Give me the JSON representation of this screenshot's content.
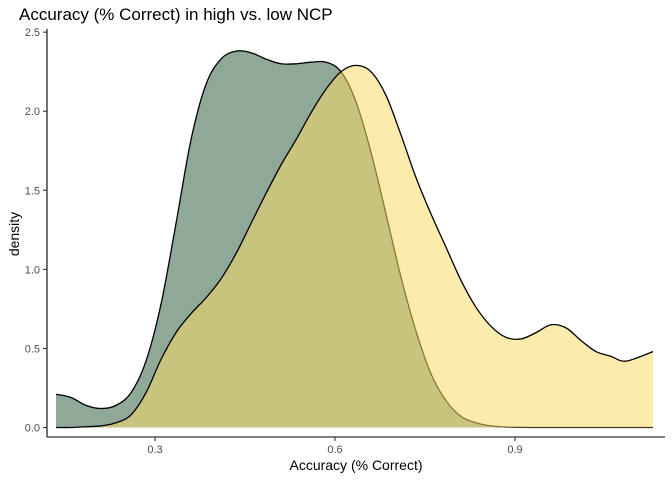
{
  "chart_data": {
    "type": "area",
    "title": "Accuracy (% Correct) in high vs. low NCP",
    "xlabel": "Accuracy (% Correct)",
    "ylabel": "density",
    "xlim": [
      0.12,
      1.15
    ],
    "ylim": [
      -0.06,
      2.52
    ],
    "x_ticks": [
      0.3,
      0.6,
      0.9
    ],
    "x_tick_labels": [
      "0.3",
      "0.6",
      "0.9"
    ],
    "y_ticks": [
      0.0,
      0.5,
      1.0,
      1.5,
      2.0,
      2.5
    ],
    "y_tick_labels": [
      "0.0",
      "0.5",
      "1.0",
      "1.5",
      "2.0",
      "2.5"
    ],
    "grid": false,
    "legend": "none",
    "series": [
      {
        "color": "#8fa897",
        "x": [
          0.135,
          0.16,
          0.185,
          0.21,
          0.235,
          0.26,
          0.285,
          0.31,
          0.335,
          0.36,
          0.385,
          0.41,
          0.435,
          0.46,
          0.485,
          0.51,
          0.535,
          0.56,
          0.585,
          0.61,
          0.635,
          0.66,
          0.685,
          0.71,
          0.735,
          0.76,
          0.785,
          0.81,
          0.835,
          0.86,
          0.885,
          0.91,
          0.935,
          0.96,
          0.985,
          1.01,
          1.035,
          1.06,
          1.085,
          1.13
        ],
        "values": [
          0.21,
          0.19,
          0.14,
          0.12,
          0.14,
          0.22,
          0.42,
          0.78,
          1.29,
          1.82,
          2.17,
          2.33,
          2.38,
          2.37,
          2.33,
          2.3,
          2.3,
          2.31,
          2.31,
          2.25,
          2.06,
          1.74,
          1.35,
          0.95,
          0.61,
          0.34,
          0.17,
          0.07,
          0.03,
          0.01,
          0.003,
          0.001,
          0.0,
          0.0,
          0.0,
          0.0,
          0.0,
          0.0,
          0.0,
          0.0
        ]
      },
      {
        "color": "#f7db6a",
        "opacity": 0.55,
        "x": [
          0.135,
          0.16,
          0.185,
          0.21,
          0.235,
          0.26,
          0.285,
          0.31,
          0.335,
          0.36,
          0.385,
          0.41,
          0.435,
          0.46,
          0.485,
          0.51,
          0.535,
          0.56,
          0.585,
          0.61,
          0.635,
          0.66,
          0.685,
          0.71,
          0.735,
          0.76,
          0.785,
          0.81,
          0.835,
          0.86,
          0.885,
          0.91,
          0.935,
          0.96,
          0.985,
          1.01,
          1.035,
          1.06,
          1.085,
          1.13
        ],
        "values": [
          0.0,
          0.0,
          0.005,
          0.01,
          0.03,
          0.08,
          0.22,
          0.43,
          0.6,
          0.72,
          0.82,
          0.94,
          1.1,
          1.29,
          1.48,
          1.66,
          1.82,
          1.99,
          2.14,
          2.25,
          2.29,
          2.25,
          2.1,
          1.85,
          1.58,
          1.35,
          1.14,
          0.93,
          0.76,
          0.64,
          0.57,
          0.56,
          0.6,
          0.65,
          0.63,
          0.55,
          0.48,
          0.45,
          0.42,
          0.48
        ]
      }
    ]
  }
}
